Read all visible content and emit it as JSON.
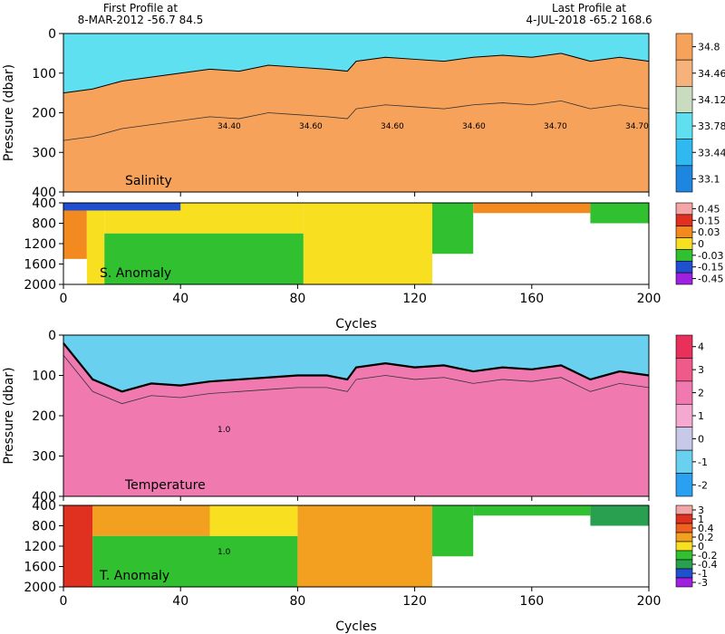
{
  "header": {
    "first_label": "First Profile at",
    "first_info": "8-MAR-2012    -56.7   84.5",
    "last_label": "Last Profile at",
    "last_info": "4-JUL-2018    -65.2  168.6"
  },
  "chart_data": [
    {
      "type": "heatmap",
      "title": "Salinity",
      "xlabel": "",
      "ylabel": "Pressure (dbar)",
      "xlim": [
        0,
        200
      ],
      "ylim": [
        400,
        0
      ],
      "yticks": [
        0,
        100,
        200,
        300,
        400
      ],
      "colorbar": {
        "labels": [
          "34.8",
          "34.46",
          "34.12",
          "33.78",
          "33.44",
          "33.1"
        ],
        "colors": [
          "#f6a25a",
          "#f6b27a",
          "#c9dcc0",
          "#5fe0f0",
          "#30b8f0",
          "#1f86e0"
        ]
      },
      "contour_labels": [
        "34.40",
        "34.60",
        "34.60",
        "34.60",
        "34.70",
        "34.70"
      ],
      "mixed_layer_depth": {
        "x": [
          0,
          10,
          20,
          30,
          40,
          50,
          60,
          70,
          80,
          90,
          97,
          100,
          110,
          120,
          130,
          140,
          150,
          160,
          170,
          180,
          190,
          200
        ],
        "y": [
          150,
          140,
          120,
          110,
          100,
          90,
          95,
          80,
          85,
          90,
          95,
          70,
          60,
          65,
          70,
          60,
          55,
          60,
          50,
          70,
          60,
          70
        ]
      }
    },
    {
      "type": "heatmap",
      "title": "S. Anomaly",
      "xlabel": "",
      "ylabel": "",
      "xlim": [
        0,
        200
      ],
      "ylim": [
        2000,
        400
      ],
      "yticks": [
        400,
        800,
        1200,
        1600,
        2000
      ],
      "colorbar": {
        "labels": [
          "0.45",
          "0.15",
          "0.03",
          "0",
          "-0.03",
          "-0.15",
          "-0.45"
        ],
        "colors": [
          "#f4a6a6",
          "#e03020",
          "#f38a20",
          "#f8e020",
          "#30c030",
          "#2050d0",
          "#a020e0"
        ]
      },
      "blocks": [
        {
          "x": [
            0,
            8
          ],
          "y": [
            400,
            1500
          ],
          "v": 0.03
        },
        {
          "x": [
            8,
            14
          ],
          "y": [
            400,
            2000
          ],
          "v": 0
        },
        {
          "x": [
            14,
            82
          ],
          "y": [
            400,
            1000
          ],
          "v": 0
        },
        {
          "x": [
            14,
            82
          ],
          "y": [
            1000,
            2000
          ],
          "v": -0.03
        },
        {
          "x": [
            82,
            126
          ],
          "y": [
            400,
            2000
          ],
          "v": 0
        },
        {
          "x": [
            126,
            140
          ],
          "y": [
            400,
            1400
          ],
          "v": -0.03
        },
        {
          "x": [
            140,
            180
          ],
          "y": [
            400,
            600
          ],
          "v": 0.03
        },
        {
          "x": [
            180,
            200
          ],
          "y": [
            400,
            800
          ],
          "v": -0.03
        },
        {
          "x": [
            0,
            40
          ],
          "y": [
            400,
            550
          ],
          "v": -0.15
        }
      ]
    },
    {
      "type": "heatmap",
      "title": "Temperature",
      "xlabel": "",
      "ylabel": "Pressure (dbar)",
      "xlim": [
        0,
        200
      ],
      "ylim": [
        400,
        0
      ],
      "yticks": [
        0,
        100,
        200,
        300,
        400
      ],
      "colorbar": {
        "labels": [
          "4",
          "3",
          "2",
          "1",
          "0",
          "-1",
          "-2"
        ],
        "colors": [
          "#e8305a",
          "#f05a8a",
          "#f07ab0",
          "#f5a8d0",
          "#c8c8e8",
          "#6ad0f0",
          "#2aa0f0"
        ]
      },
      "contour_labels": [
        "1.0"
      ],
      "mixed_layer_depth": {
        "x": [
          0,
          10,
          20,
          30,
          40,
          50,
          60,
          70,
          80,
          90,
          97,
          100,
          110,
          120,
          130,
          140,
          150,
          160,
          170,
          180,
          190,
          200
        ],
        "y": [
          20,
          110,
          140,
          120,
          125,
          115,
          110,
          105,
          100,
          100,
          110,
          80,
          70,
          80,
          75,
          90,
          80,
          85,
          75,
          110,
          90,
          100
        ]
      }
    },
    {
      "type": "heatmap",
      "title": "T. Anomaly",
      "xlabel": "Cycles",
      "ylabel": "",
      "xlim": [
        0,
        200
      ],
      "ylim": [
        2000,
        400
      ],
      "yticks": [
        400,
        800,
        1200,
        1600,
        2000
      ],
      "xticks": [
        0,
        40,
        80,
        120,
        160,
        200
      ],
      "colorbar": {
        "labels": [
          "3",
          "1",
          "0.4",
          "0.2",
          "0",
          "-0.2",
          "-0.4",
          "-1",
          "-3"
        ],
        "colors": [
          "#f4a6a6",
          "#e03020",
          "#f06020",
          "#f3a020",
          "#f8e020",
          "#30c030",
          "#28a050",
          "#2050d0",
          "#a020e0"
        ]
      },
      "contour_labels": [
        "1.0"
      ],
      "blocks": [
        {
          "x": [
            0,
            10
          ],
          "y": [
            400,
            2000
          ],
          "v": 1
        },
        {
          "x": [
            10,
            50
          ],
          "y": [
            400,
            1000
          ],
          "v": 0.2
        },
        {
          "x": [
            10,
            80
          ],
          "y": [
            1000,
            2000
          ],
          "v": -0.2
        },
        {
          "x": [
            50,
            80
          ],
          "y": [
            400,
            1000
          ],
          "v": 0
        },
        {
          "x": [
            80,
            126
          ],
          "y": [
            400,
            2000
          ],
          "v": 0.2
        },
        {
          "x": [
            126,
            140
          ],
          "y": [
            400,
            1400
          ],
          "v": -0.2
        },
        {
          "x": [
            140,
            180
          ],
          "y": [
            400,
            600
          ],
          "v": -0.2
        },
        {
          "x": [
            180,
            200
          ],
          "y": [
            400,
            800
          ],
          "v": -0.4
        }
      ]
    }
  ]
}
